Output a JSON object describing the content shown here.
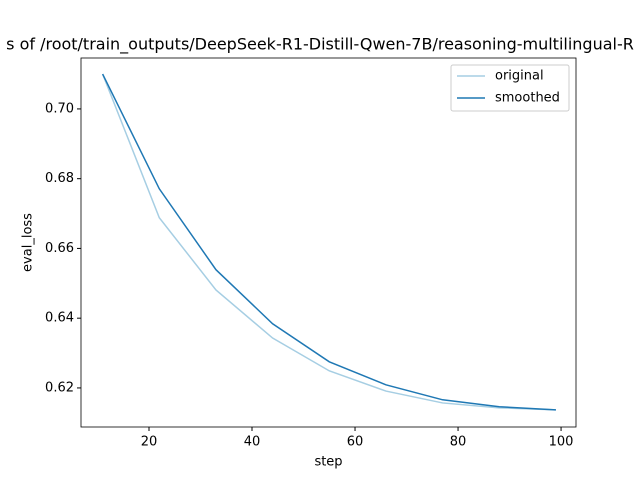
{
  "chart_data": {
    "type": "line",
    "title": "s of /root/train_outputs/DeepSeek-R1-Distill-Qwen-7B/reasoning-multilingual-R",
    "x_label": "step",
    "y_label": "eval_loss",
    "x": [
      11,
      22,
      33,
      44,
      55,
      66,
      77,
      88,
      99
    ],
    "series": [
      {
        "name": "original",
        "color": "#a6cee3",
        "values": [
          0.71,
          0.6688,
          0.6481,
          0.6343,
          0.6249,
          0.6191,
          0.6157,
          0.6143,
          0.6137
        ]
      },
      {
        "name": "smoothed",
        "color": "#1f78b4",
        "values": [
          0.71,
          0.6771,
          0.6539,
          0.6384,
          0.6275,
          0.6209,
          0.6166,
          0.6146,
          0.6137
        ]
      }
    ],
    "xlim": [
      6.8,
      102.9
    ],
    "ylim": [
      0.6088,
      0.7146
    ],
    "xticks": [
      20,
      40,
      60,
      80,
      100
    ],
    "yticks": [
      0.62,
      0.64,
      0.66,
      0.68,
      {
        "value": 0.7,
        "label": "0.70"
      }
    ],
    "legend": "upper right"
  }
}
